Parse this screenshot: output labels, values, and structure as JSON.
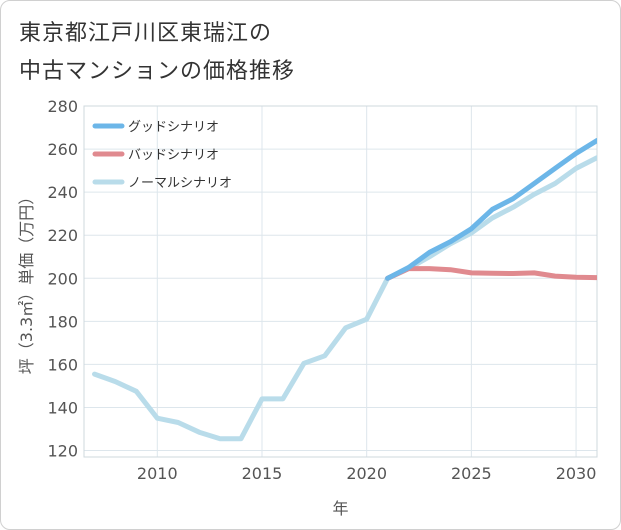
{
  "title_line1": "東京都江戸川区東瑞江の",
  "title_line2": "中古マンションの価格推移",
  "chart_data": {
    "type": "line",
    "xlabel": "年",
    "ylabel": "坪（3.3㎡）単価（万円）",
    "xlim": [
      2006.5,
      2031
    ],
    "ylim": [
      117,
      280
    ],
    "x_ticks": [
      2010,
      2015,
      2020,
      2025,
      2030
    ],
    "y_ticks": [
      120,
      140,
      160,
      180,
      200,
      220,
      240,
      260,
      280
    ],
    "grid": true,
    "legend_position": "top-left",
    "series": [
      {
        "name": "グッドシナリオ",
        "color": "#6cb6e8",
        "x": [
          2021,
          2022,
          2023,
          2024,
          2025,
          2026,
          2027,
          2028,
          2029,
          2030,
          2031
        ],
        "y": [
          200,
          205,
          212,
          217,
          223,
          232,
          237,
          244,
          251,
          258,
          264
        ]
      },
      {
        "name": "バッドシナリオ",
        "color": "#e08a8f",
        "x": [
          2021,
          2022,
          2023,
          2024,
          2025,
          2026,
          2027,
          2028,
          2029,
          2030,
          2031
        ],
        "y": [
          200,
          204.5,
          204.5,
          204,
          202.5,
          202.3,
          202.2,
          202.5,
          201,
          200.5,
          200.3
        ]
      },
      {
        "name": "ノーマルシナリオ",
        "color": "#b9dcea",
        "x": [
          2007,
          2008,
          2009,
          2010,
          2011,
          2012,
          2013,
          2014,
          2015,
          2016,
          2017,
          2018,
          2019,
          2020,
          2021,
          2022,
          2023,
          2024,
          2025,
          2026,
          2027,
          2028,
          2029,
          2030,
          2031
        ],
        "y": [
          155.5,
          152,
          147.5,
          135,
          133,
          128.5,
          125.5,
          125.5,
          144,
          144,
          160.5,
          164,
          177,
          181,
          200,
          204.5,
          210,
          216,
          221,
          228,
          233,
          239,
          244,
          251,
          256
        ]
      }
    ]
  }
}
